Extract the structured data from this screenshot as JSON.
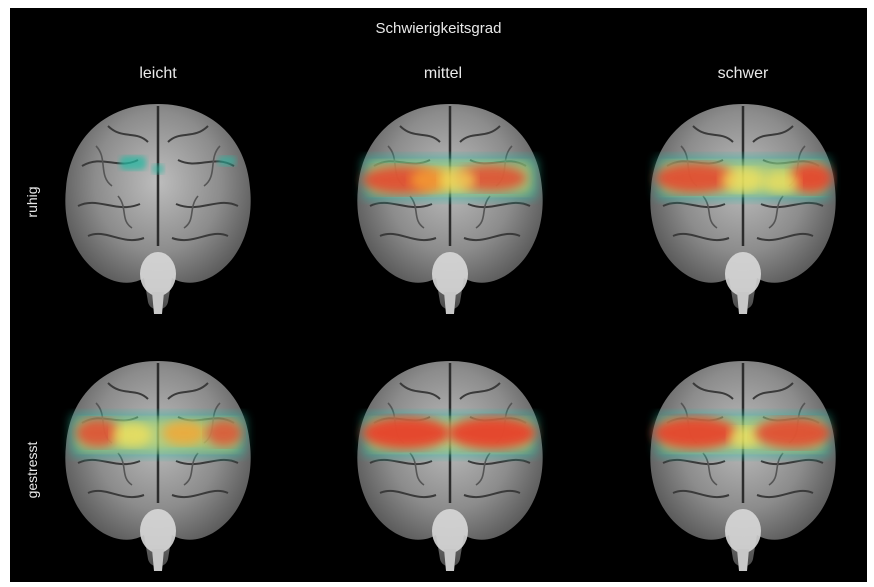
{
  "title": "Schwierigkeitsgrad",
  "columns": [
    "leicht",
    "mittel",
    "schwer"
  ],
  "rows": [
    "ruhig",
    "gestresst"
  ],
  "colors": {
    "background": "#000000",
    "brain": "#8c8c8c",
    "text": "#e9e9e9",
    "heat_low": "#27b8a2",
    "heat_mid": "#f4e25a",
    "heat_high": "#e8432a"
  },
  "activation": [
    {
      "row": "ruhig",
      "column": "leicht",
      "level": "low"
    },
    {
      "row": "ruhig",
      "column": "mittel",
      "level": "medium"
    },
    {
      "row": "ruhig",
      "column": "schwer",
      "level": "medium"
    },
    {
      "row": "gestresst",
      "column": "leicht",
      "level": "medium"
    },
    {
      "row": "gestresst",
      "column": "mittel",
      "level": "high"
    },
    {
      "row": "gestresst",
      "column": "schwer",
      "level": "high"
    }
  ]
}
